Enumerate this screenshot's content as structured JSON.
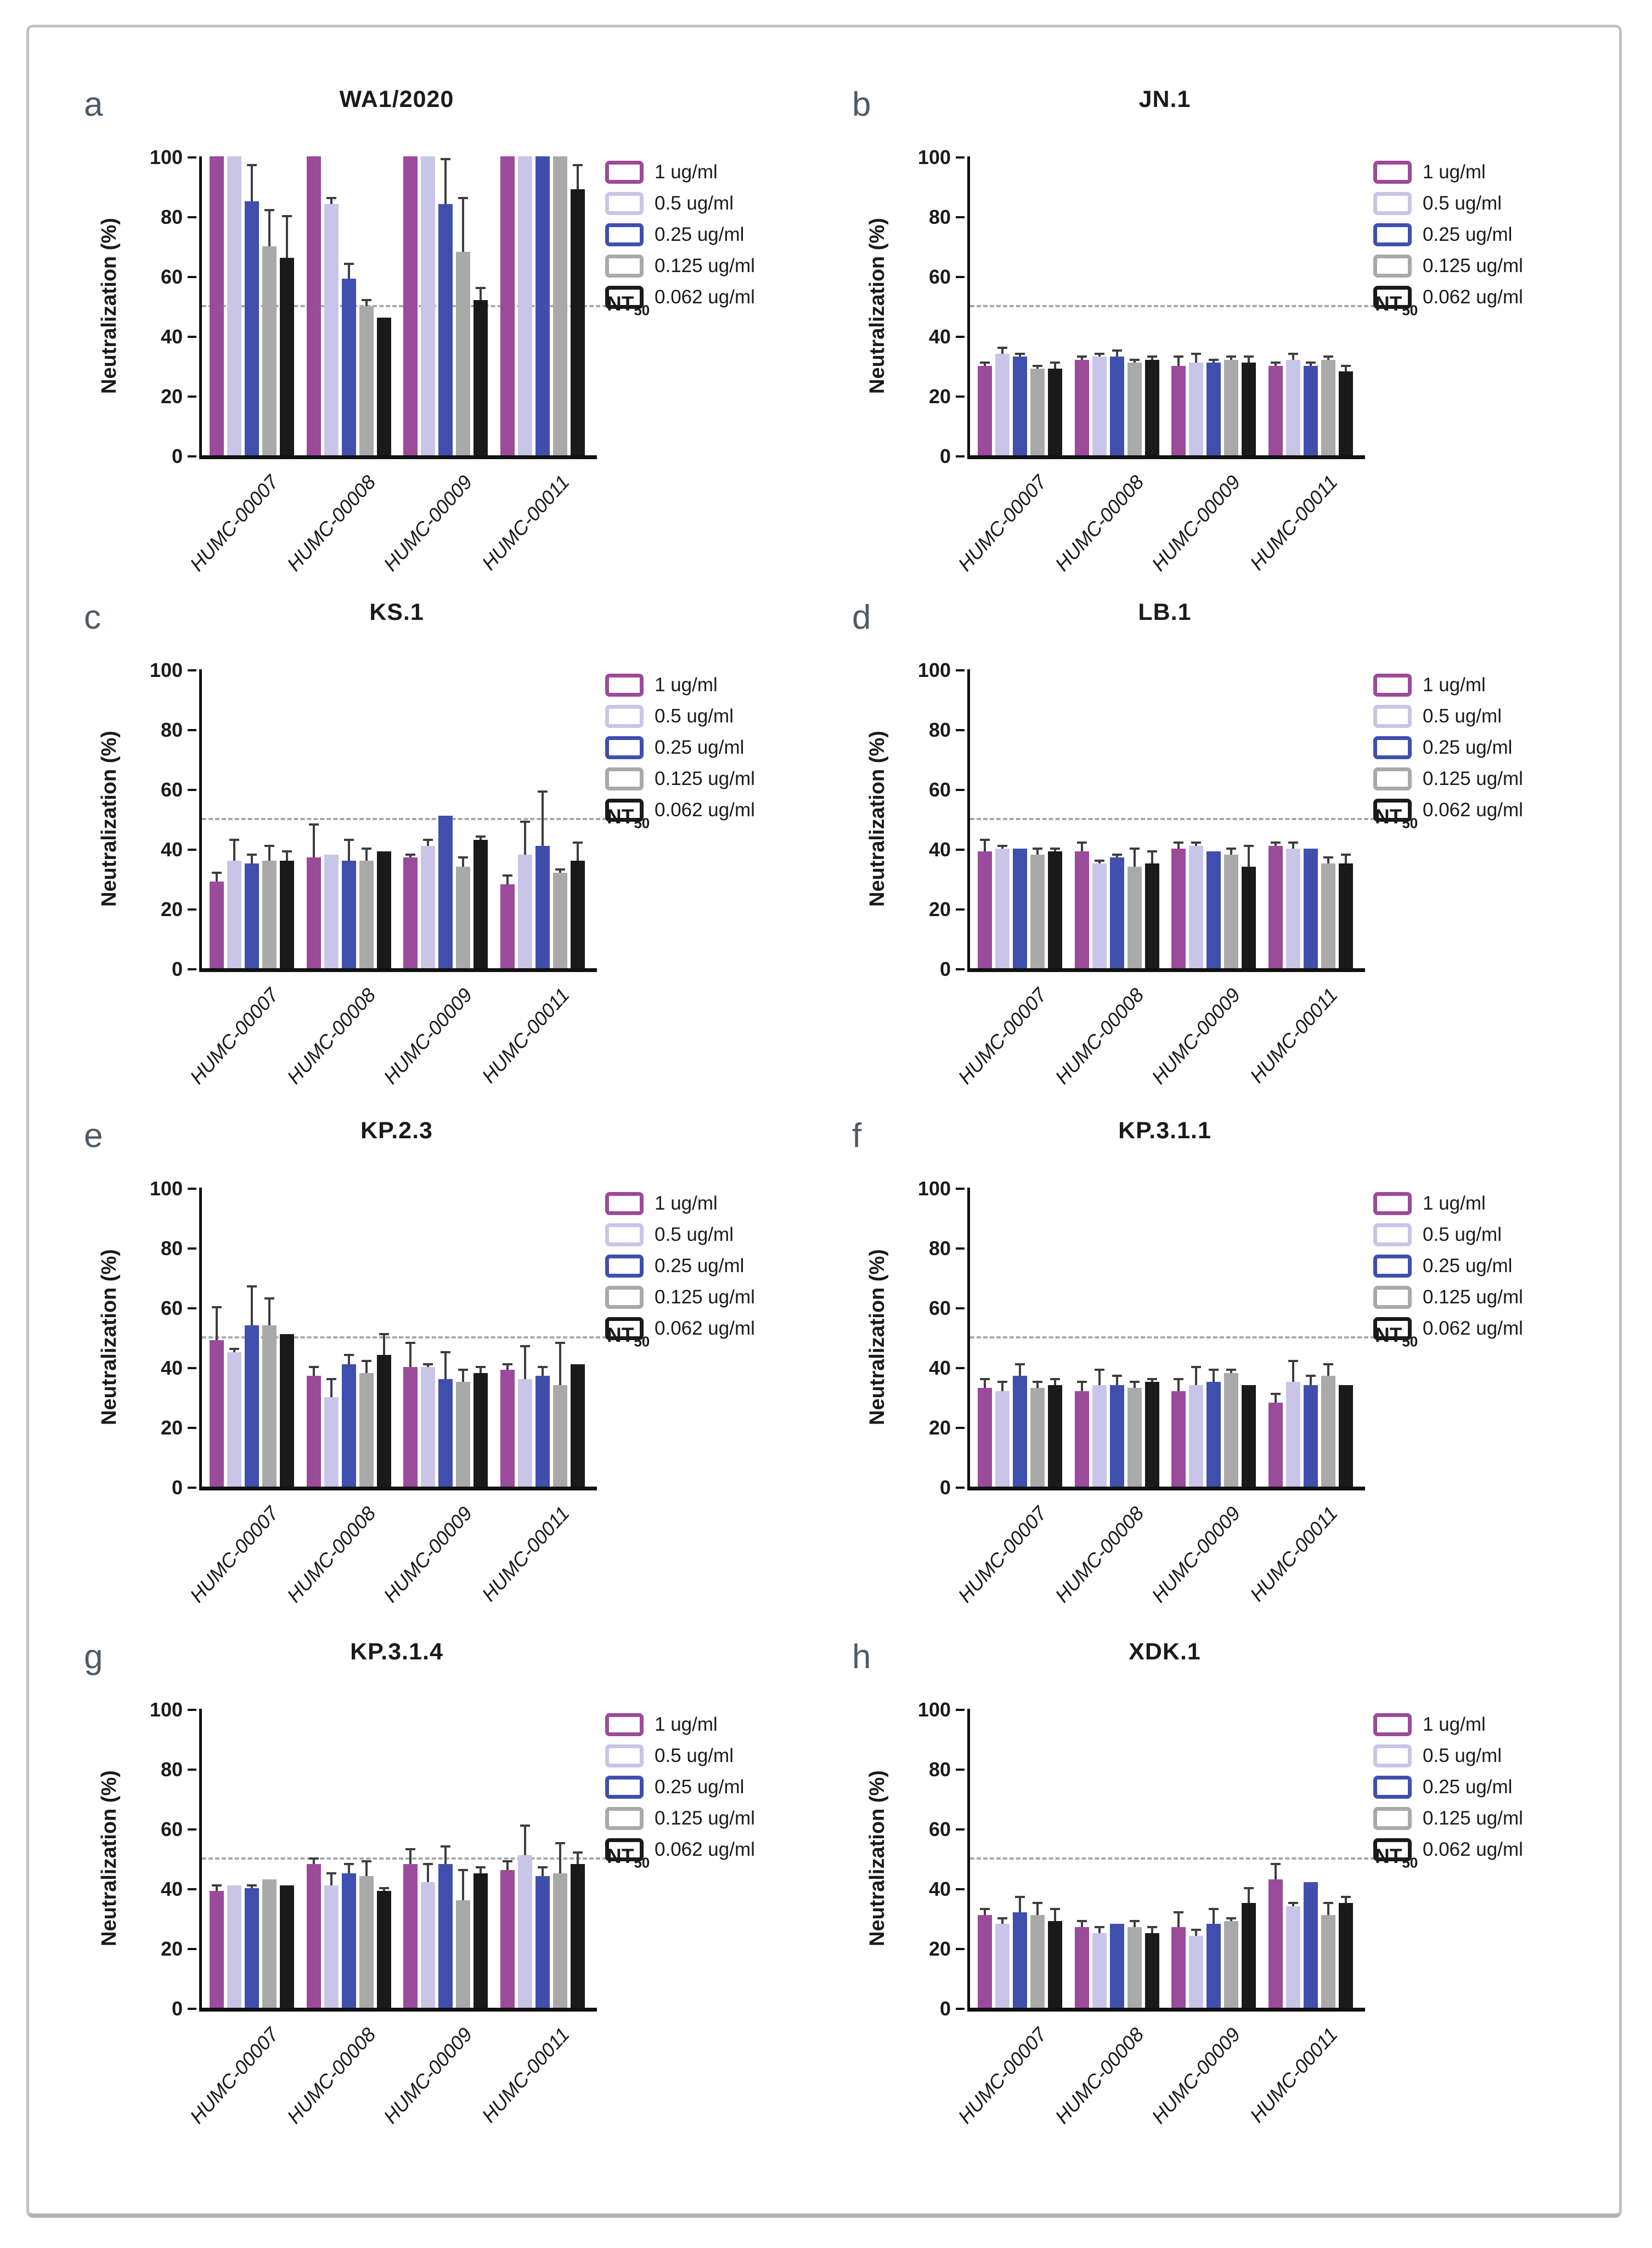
{
  "figure": {
    "panel_letters": [
      "a",
      "b",
      "c",
      "d",
      "e",
      "f",
      "g",
      "h"
    ]
  },
  "axis": {
    "ylabel": "Neutralization (%)",
    "yticks": [
      0,
      20,
      40,
      60,
      80,
      100
    ],
    "ylim": [
      0,
      100
    ],
    "threshold_value": 50,
    "threshold_label_main": "NT",
    "threshold_label_sub": "50"
  },
  "legend": {
    "position": "right",
    "entries": [
      {
        "label": "1 ug/ml",
        "color": "#9c4a9a"
      },
      {
        "label": "0.5 ug/ml",
        "color": "#c9c5e8"
      },
      {
        "label": "0.25 ug/ml",
        "color": "#3f4fae"
      },
      {
        "label": "0.125 ug/ml",
        "color": "#a9a9a9"
      },
      {
        "label": "0.062 ug/ml",
        "color": "#1a1a1a"
      }
    ]
  },
  "chart_data": [
    {
      "type": "bar",
      "letter": "a",
      "title": "WA1/2020",
      "xlabel": "",
      "ylabel": "Neutralization (%)",
      "ylim": [
        0,
        100
      ],
      "grid": false,
      "nt50_line": 50,
      "categories": [
        "HUMC-00007",
        "HUMC-00008",
        "HUMC-00009",
        "HUMC-00011"
      ],
      "series": [
        {
          "name": "1 ug/ml",
          "values": [
            100,
            100,
            100,
            100
          ],
          "errors": [
            0,
            0,
            0,
            0
          ]
        },
        {
          "name": "0.5 ug/ml",
          "values": [
            100,
            84,
            100,
            100
          ],
          "errors": [
            0,
            2,
            0,
            0
          ]
        },
        {
          "name": "0.25 ug/ml",
          "values": [
            85,
            59,
            84,
            100
          ],
          "errors": [
            12,
            5,
            15,
            0
          ]
        },
        {
          "name": "0.125 ug/ml",
          "values": [
            70,
            50,
            68,
            100
          ],
          "errors": [
            12,
            2,
            18,
            0
          ]
        },
        {
          "name": "0.062 ug/ml",
          "values": [
            66,
            46,
            52,
            89
          ],
          "errors": [
            14,
            0,
            4,
            8
          ]
        }
      ]
    },
    {
      "type": "bar",
      "letter": "b",
      "title": "JN.1",
      "xlabel": "",
      "ylabel": "Neutralization (%)",
      "ylim": [
        0,
        100
      ],
      "grid": false,
      "nt50_line": 50,
      "categories": [
        "HUMC-00007",
        "HUMC-00008",
        "HUMC-00009",
        "HUMC-00011"
      ],
      "series": [
        {
          "name": "1 ug/ml",
          "values": [
            30,
            32,
            30,
            30
          ],
          "errors": [
            1,
            1,
            3,
            1
          ]
        },
        {
          "name": "0.5 ug/ml",
          "values": [
            34,
            33,
            31,
            32
          ],
          "errors": [
            2,
            1,
            3,
            2
          ]
        },
        {
          "name": "0.25 ug/ml",
          "values": [
            33,
            33,
            31,
            30
          ],
          "errors": [
            1,
            2,
            1,
            1
          ]
        },
        {
          "name": "0.125 ug/ml",
          "values": [
            29,
            31,
            32,
            32
          ],
          "errors": [
            1,
            1,
            1,
            1
          ]
        },
        {
          "name": "0.062 ug/ml",
          "values": [
            29,
            32,
            31,
            28
          ],
          "errors": [
            2,
            1,
            2,
            2
          ]
        }
      ]
    },
    {
      "type": "bar",
      "letter": "c",
      "title": "KS.1",
      "xlabel": "",
      "ylabel": "Neutralization (%)",
      "ylim": [
        0,
        100
      ],
      "grid": false,
      "nt50_line": 50,
      "categories": [
        "HUMC-00007",
        "HUMC-00008",
        "HUMC-00009",
        "HUMC-00011"
      ],
      "series": [
        {
          "name": "1 ug/ml",
          "values": [
            29,
            37,
            37,
            28
          ],
          "errors": [
            3,
            11,
            1,
            3
          ]
        },
        {
          "name": "0.5 ug/ml",
          "values": [
            36,
            38,
            41,
            38
          ],
          "errors": [
            7,
            0,
            2,
            11
          ]
        },
        {
          "name": "0.25 ug/ml",
          "values": [
            35,
            36,
            51,
            41
          ],
          "errors": [
            3,
            7,
            0,
            18
          ]
        },
        {
          "name": "0.125 ug/ml",
          "values": [
            36,
            36,
            34,
            32
          ],
          "errors": [
            5,
            4,
            3,
            1
          ]
        },
        {
          "name": "0.062 ug/ml",
          "values": [
            36,
            39,
            43,
            36
          ],
          "errors": [
            3,
            0,
            1,
            6
          ]
        }
      ]
    },
    {
      "type": "bar",
      "letter": "d",
      "title": "LB.1",
      "xlabel": "",
      "ylabel": "Neutralization (%)",
      "ylim": [
        0,
        100
      ],
      "grid": false,
      "nt50_line": 50,
      "categories": [
        "HUMC-00007",
        "HUMC-00008",
        "HUMC-00009",
        "HUMC-00011"
      ],
      "series": [
        {
          "name": "1 ug/ml",
          "values": [
            39,
            39,
            40,
            41
          ],
          "errors": [
            4,
            3,
            2,
            1
          ]
        },
        {
          "name": "0.5 ug/ml",
          "values": [
            40,
            35,
            41,
            40
          ],
          "errors": [
            1,
            1,
            1,
            2
          ]
        },
        {
          "name": "0.25 ug/ml",
          "values": [
            40,
            37,
            39,
            40
          ],
          "errors": [
            0,
            1,
            0,
            0
          ]
        },
        {
          "name": "0.125 ug/ml",
          "values": [
            38,
            34,
            38,
            35
          ],
          "errors": [
            2,
            6,
            2,
            2
          ]
        },
        {
          "name": "0.062 ug/ml",
          "values": [
            39,
            35,
            34,
            35
          ],
          "errors": [
            1,
            4,
            7,
            3
          ]
        }
      ]
    },
    {
      "type": "bar",
      "letter": "e",
      "title": "KP.2.3",
      "xlabel": "",
      "ylabel": "Neutralization (%)",
      "ylim": [
        0,
        100
      ],
      "grid": false,
      "nt50_line": 50,
      "categories": [
        "HUMC-00007",
        "HUMC-00008",
        "HUMC-00009",
        "HUMC-00011"
      ],
      "series": [
        {
          "name": "1 ug/ml",
          "values": [
            49,
            37,
            40,
            39
          ],
          "errors": [
            11,
            3,
            8,
            2
          ]
        },
        {
          "name": "0.5 ug/ml",
          "values": [
            45,
            30,
            40,
            36
          ],
          "errors": [
            1,
            6,
            1,
            11
          ]
        },
        {
          "name": "0.25 ug/ml",
          "values": [
            54,
            41,
            36,
            37
          ],
          "errors": [
            13,
            3,
            9,
            3
          ]
        },
        {
          "name": "0.125 ug/ml",
          "values": [
            54,
            38,
            35,
            34
          ],
          "errors": [
            9,
            4,
            4,
            14
          ]
        },
        {
          "name": "0.062 ug/ml",
          "values": [
            51,
            44,
            38,
            41
          ],
          "errors": [
            0,
            7,
            2,
            0
          ]
        }
      ]
    },
    {
      "type": "bar",
      "letter": "f",
      "title": "KP.3.1.1",
      "xlabel": "",
      "ylabel": "Neutralization (%)",
      "ylim": [
        0,
        100
      ],
      "grid": false,
      "nt50_line": 50,
      "categories": [
        "HUMC-00007",
        "HUMC-00008",
        "HUMC-00009",
        "HUMC-00011"
      ],
      "series": [
        {
          "name": "1 ug/ml",
          "values": [
            33,
            32,
            32,
            28
          ],
          "errors": [
            3,
            3,
            4,
            3
          ]
        },
        {
          "name": "0.5 ug/ml",
          "values": [
            32,
            34,
            34,
            35
          ],
          "errors": [
            3,
            5,
            6,
            7
          ]
        },
        {
          "name": "0.25 ug/ml",
          "values": [
            37,
            34,
            35,
            34
          ],
          "errors": [
            4,
            3,
            4,
            3
          ]
        },
        {
          "name": "0.125 ug/ml",
          "values": [
            33,
            33,
            38,
            37
          ],
          "errors": [
            2,
            2,
            1,
            4
          ]
        },
        {
          "name": "0.062 ug/ml",
          "values": [
            34,
            35,
            34,
            34
          ],
          "errors": [
            2,
            1,
            0,
            0
          ]
        }
      ]
    },
    {
      "type": "bar",
      "letter": "g",
      "title": "KP.3.1.4",
      "xlabel": "",
      "ylabel": "Neutralization (%)",
      "ylim": [
        0,
        100
      ],
      "grid": false,
      "nt50_line": 50,
      "categories": [
        "HUMC-00007",
        "HUMC-00008",
        "HUMC-00009",
        "HUMC-00011"
      ],
      "series": [
        {
          "name": "1 ug/ml",
          "values": [
            39,
            48,
            48,
            46
          ],
          "errors": [
            2,
            2,
            5,
            3
          ]
        },
        {
          "name": "0.5 ug/ml",
          "values": [
            41,
            41,
            42,
            51
          ],
          "errors": [
            0,
            4,
            6,
            10
          ]
        },
        {
          "name": "0.25 ug/ml",
          "values": [
            40,
            45,
            48,
            44
          ],
          "errors": [
            1,
            3,
            6,
            3
          ]
        },
        {
          "name": "0.125 ug/ml",
          "values": [
            43,
            44,
            36,
            45
          ],
          "errors": [
            0,
            5,
            10,
            10
          ]
        },
        {
          "name": "0.062 ug/ml",
          "values": [
            41,
            39,
            45,
            48
          ],
          "errors": [
            0,
            1,
            2,
            4
          ]
        }
      ]
    },
    {
      "type": "bar",
      "letter": "h",
      "title": "XDK.1",
      "xlabel": "",
      "ylabel": "Neutralization (%)",
      "ylim": [
        0,
        100
      ],
      "grid": false,
      "nt50_line": 50,
      "categories": [
        "HUMC-00007",
        "HUMC-00008",
        "HUMC-00009",
        "HUMC-00011"
      ],
      "series": [
        {
          "name": "1 ug/ml",
          "values": [
            31,
            27,
            27,
            43
          ],
          "errors": [
            2,
            2,
            5,
            5
          ]
        },
        {
          "name": "0.5 ug/ml",
          "values": [
            28,
            25,
            24,
            34
          ],
          "errors": [
            2,
            2,
            2,
            1
          ]
        },
        {
          "name": "0.25 ug/ml",
          "values": [
            32,
            28,
            28,
            42
          ],
          "errors": [
            5,
            0,
            5,
            0
          ]
        },
        {
          "name": "0.125 ug/ml",
          "values": [
            31,
            27,
            29,
            31
          ],
          "errors": [
            4,
            2,
            1,
            4
          ]
        },
        {
          "name": "0.062 ug/ml",
          "values": [
            29,
            25,
            35,
            35
          ],
          "errors": [
            4,
            2,
            5,
            2
          ]
        }
      ]
    }
  ]
}
